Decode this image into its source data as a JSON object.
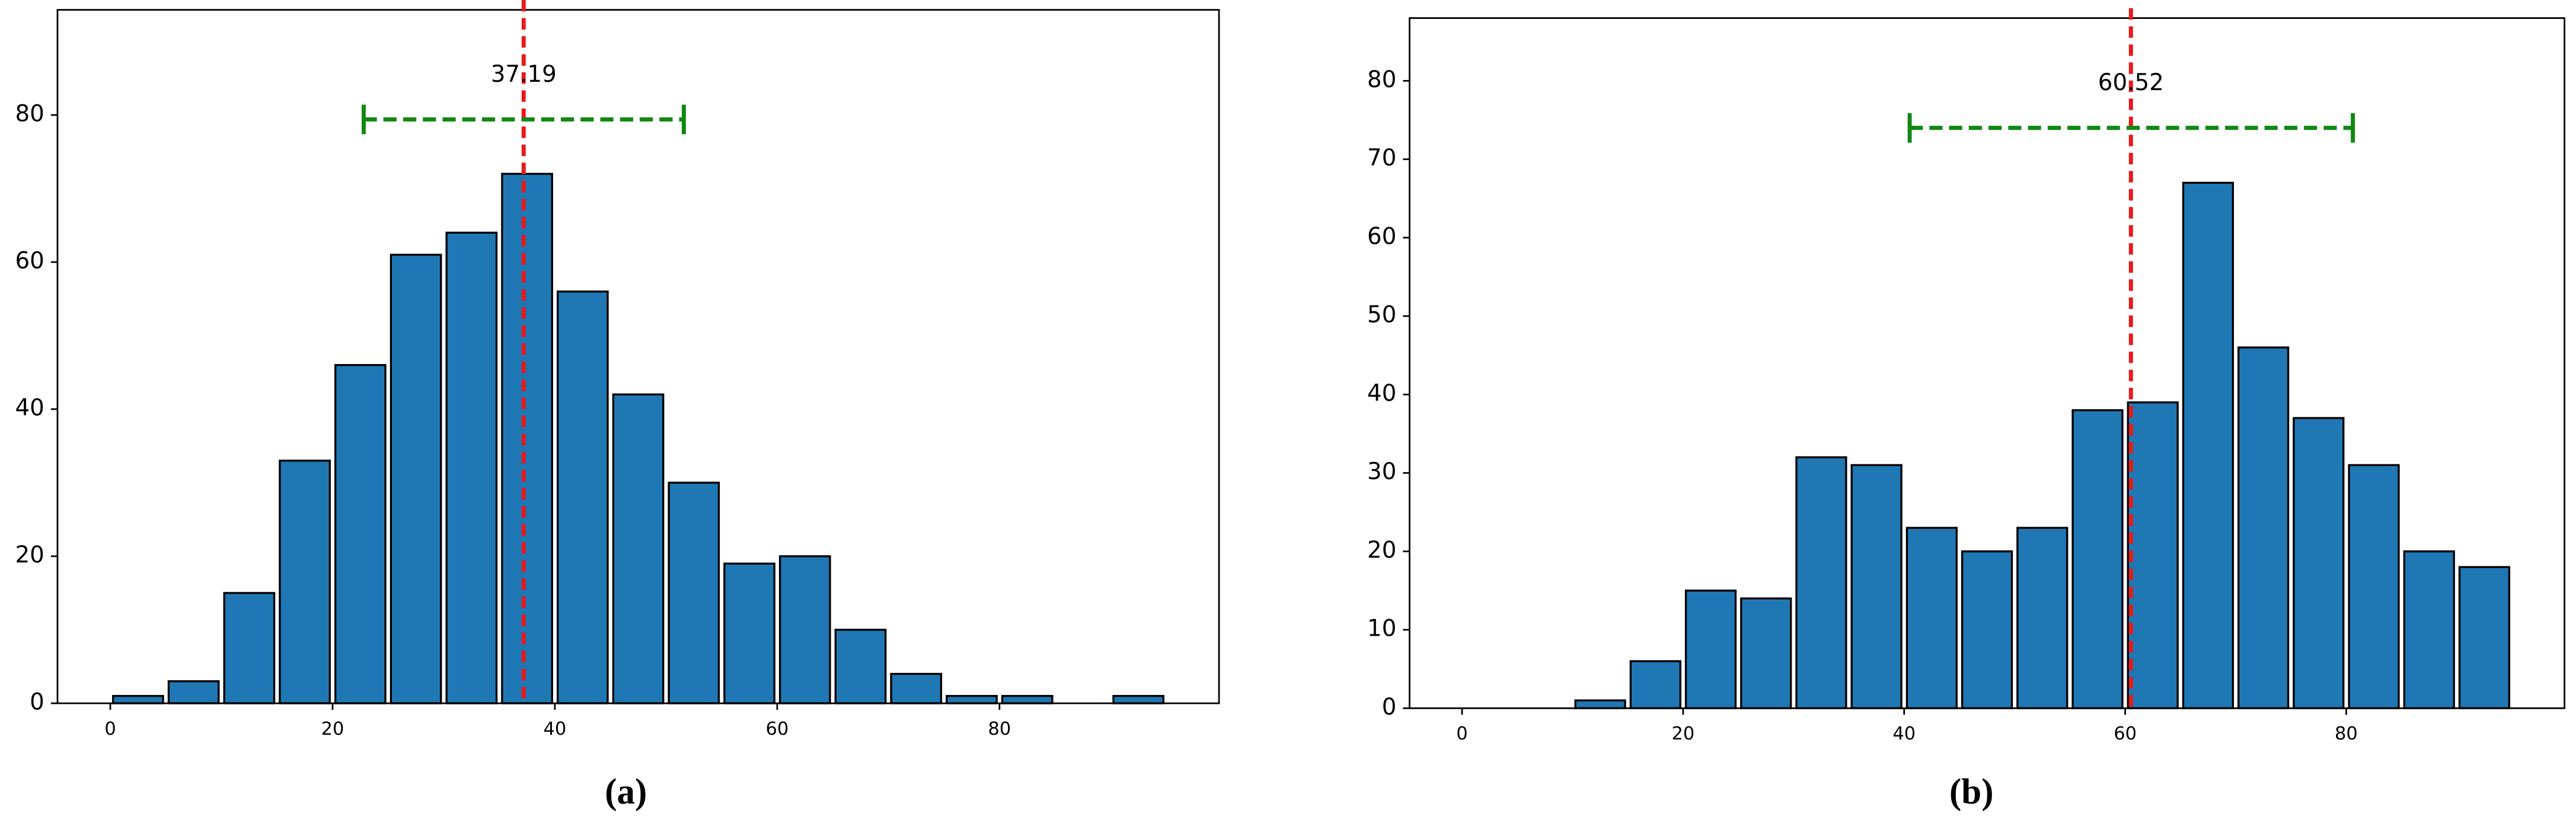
{
  "chart_data": [
    {
      "type": "histogram",
      "caption": "(a)",
      "bins": [
        0,
        5,
        10,
        15,
        20,
        25,
        30,
        35,
        40,
        45,
        50,
        55,
        60,
        65,
        70,
        75,
        80,
        85,
        90,
        95
      ],
      "values": [
        1,
        3,
        15,
        33,
        46,
        61,
        64,
        72,
        56,
        42,
        30,
        19,
        20,
        10,
        4,
        1,
        1,
        0,
        1
      ],
      "color": "#1f77b4",
      "edgecolor": "#000000",
      "mean": 37.19,
      "mean_color": "#e8191b",
      "interval": [
        22.8,
        51.6
      ],
      "interval_y": 79.4,
      "interval_color": "#118811",
      "xlim": [
        -4.75,
        99.75
      ],
      "ylim": [
        0,
        94.3
      ],
      "xticks": [
        0,
        20,
        40,
        60,
        80
      ],
      "yticks": [
        0,
        20,
        40,
        60,
        80
      ]
    },
    {
      "type": "histogram",
      "caption": "(b)",
      "bins": [
        0,
        5,
        10,
        15,
        20,
        25,
        30,
        35,
        40,
        45,
        50,
        55,
        60,
        65,
        70,
        75,
        80,
        85,
        90,
        95
      ],
      "values": [
        0,
        0,
        1,
        6,
        15,
        14,
        32,
        31,
        23,
        20,
        23,
        38,
        39,
        67,
        46,
        37,
        31,
        20,
        18
      ],
      "color": "#1f77b4",
      "edgecolor": "#000000",
      "mean": 60.52,
      "mean_color": "#e8191b",
      "interval": [
        40.5,
        80.6
      ],
      "interval_y": 74,
      "interval_color": "#118811",
      "xlim": [
        -4.75,
        99.75
      ],
      "ylim": [
        0,
        88
      ],
      "xticks": [
        0,
        20,
        40,
        60,
        80
      ],
      "yticks": [
        0,
        10,
        20,
        30,
        40,
        50,
        60,
        70,
        80
      ]
    }
  ]
}
